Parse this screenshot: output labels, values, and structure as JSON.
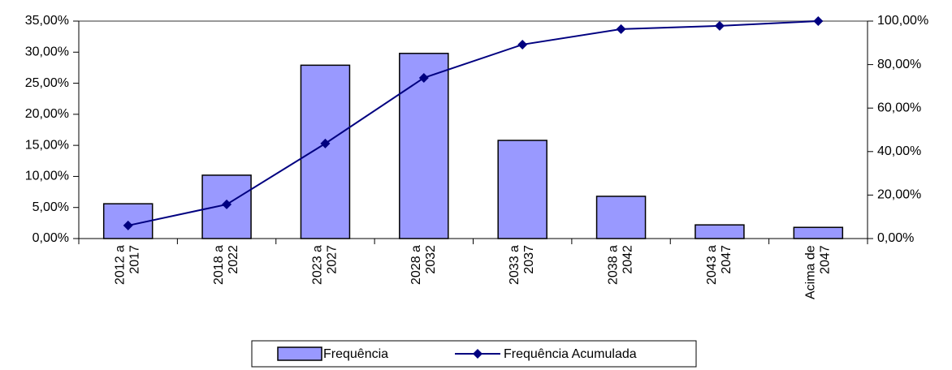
{
  "chart_data": {
    "type": "bar",
    "categories": [
      "2012 a\n2017",
      "2018 a\n2022",
      "2023 a\n2027",
      "2028 a\n2032",
      "2033 a\n2037",
      "2038 a\n2042",
      "2043 a\n2047",
      "Acima de\n2047"
    ],
    "series": [
      {
        "name": "Frequência",
        "type": "bar",
        "color": "#9999ff",
        "values": [
          5.6,
          10.2,
          27.9,
          29.8,
          15.8,
          6.8,
          2.2,
          1.8
        ]
      },
      {
        "name": "Frequência Acumulada",
        "type": "line",
        "axis": "y2",
        "color": "#000080",
        "values": [
          6.0,
          15.7,
          43.7,
          73.9,
          89.2,
          96.3,
          97.8,
          100
        ]
      }
    ],
    "ylim": [
      0,
      35
    ],
    "yticks": [
      {
        "value": 0,
        "label": "0,00%"
      },
      {
        "value": 5,
        "label": "5,00%"
      },
      {
        "value": 10,
        "label": "10,00%"
      },
      {
        "value": 15,
        "label": "15,00%"
      },
      {
        "value": 20,
        "label": "20,00%"
      },
      {
        "value": 25,
        "label": "25,00%"
      },
      {
        "value": 30,
        "label": "30,00%"
      },
      {
        "value": 35,
        "label": "35,00%"
      }
    ],
    "y2lim": [
      0,
      100
    ],
    "y2ticks": [
      {
        "value": 0,
        "label": "0,00%"
      },
      {
        "value": 20,
        "label": "20,00%"
      },
      {
        "value": 40,
        "label": "40,00%"
      },
      {
        "value": 60,
        "label": "60,00%"
      },
      {
        "value": 80,
        "label": "80,00%"
      },
      {
        "value": 100,
        "label": "100,00%"
      }
    ],
    "legend": "bottom"
  }
}
